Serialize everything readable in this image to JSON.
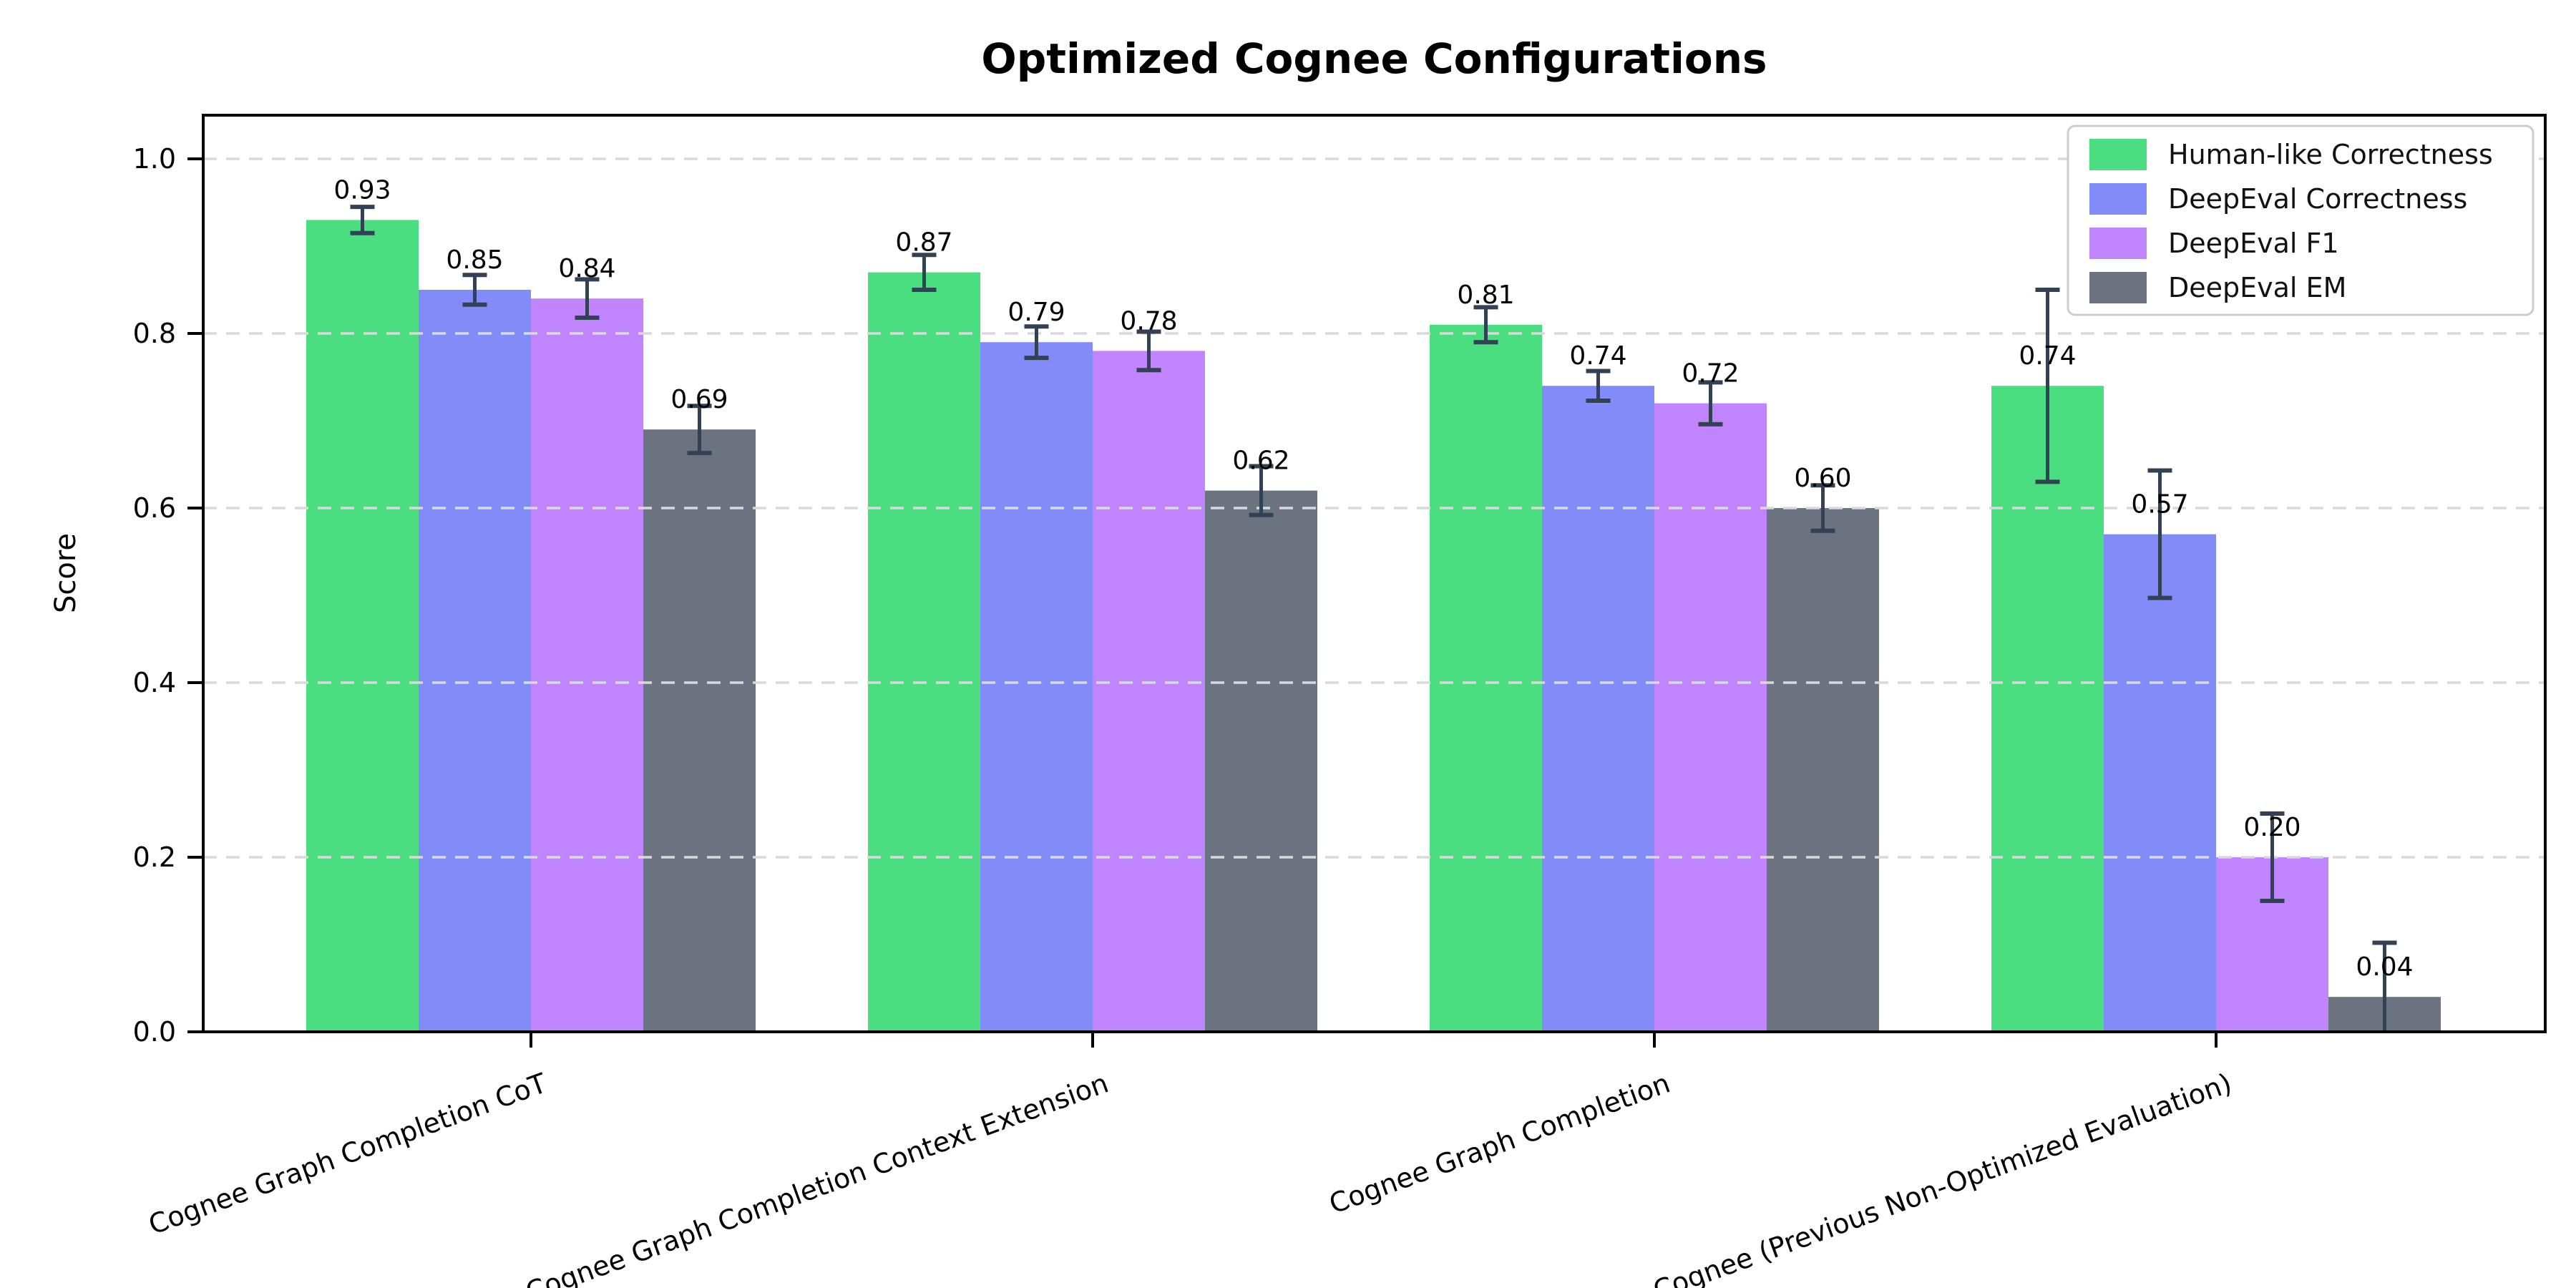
{
  "figure": {
    "background": "#ffffff"
  },
  "chart_data": {
    "type": "bar",
    "title": "Optimized Cognee Configurations",
    "ylabel": "Score",
    "xlabel": "",
    "ylim": [
      0,
      1.05
    ],
    "yticks": [
      0.0,
      0.2,
      0.4,
      0.6,
      0.8,
      1.0
    ],
    "grid": "horizontal dashed, drawn over bars",
    "legend_position": "upper-right inside axes",
    "categories": [
      "Cognee Graph Completion CoT",
      "Cognee Graph Completion Context Extension",
      "Cognee Graph Completion",
      "Cognee (Previous Non-Optimized Evaluation)"
    ],
    "series": [
      {
        "name": "Human-like Correctness",
        "color": "#4ade80",
        "values": [
          0.93,
          0.87,
          0.81,
          0.74
        ],
        "errors": [
          0.015,
          0.02,
          0.02,
          0.11
        ]
      },
      {
        "name": "DeepEval Correctness",
        "color": "#818cf8",
        "values": [
          0.85,
          0.79,
          0.74,
          0.57
        ],
        "errors": [
          0.017,
          0.018,
          0.017,
          0.073
        ]
      },
      {
        "name": "DeepEval F1",
        "color": "#c084fc",
        "values": [
          0.84,
          0.78,
          0.72,
          0.2
        ],
        "errors": [
          0.022,
          0.022,
          0.024,
          0.05
        ]
      },
      {
        "name": "DeepEval EM",
        "color": "#6b7280",
        "values": [
          0.69,
          0.62,
          0.6,
          0.04
        ],
        "errors": [
          0.027,
          0.028,
          0.026,
          0.062
        ]
      }
    ],
    "bar_value_labels": [
      [
        "0.93",
        "0.87",
        "0.81",
        "0.74"
      ],
      [
        "0.85",
        "0.79",
        "0.74",
        "0.57"
      ],
      [
        "0.84",
        "0.78",
        "0.72",
        "0.20"
      ],
      [
        "0.69",
        "0.62",
        "0.60",
        "0.04"
      ]
    ],
    "colors": {
      "errorbar": "#334155",
      "grid": "#d9d9d9",
      "axis": "#000000",
      "tick_label": "#000000",
      "legend_border": "#cccccc",
      "legend_background": "#ffffff",
      "bar_label": "#000000"
    }
  }
}
